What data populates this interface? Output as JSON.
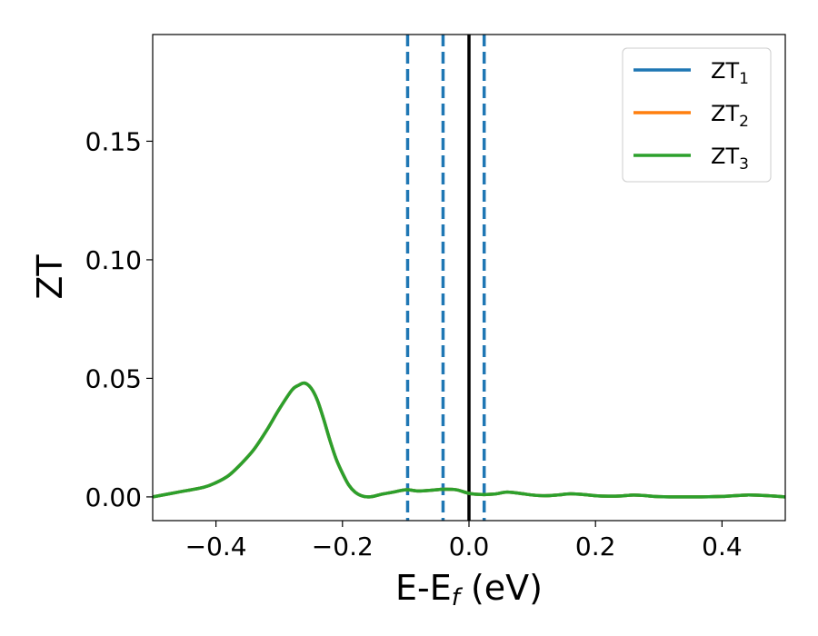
{
  "chart_data": {
    "type": "line",
    "title": "",
    "xlabel": "E-E",
    "xlabel_sub": "f",
    "xlabel_unit": " (eV)",
    "ylabel": "ZT",
    "xlim": [
      -0.5,
      0.5
    ],
    "ylim": [
      -0.01,
      0.195
    ],
    "xticks": [
      -0.4,
      -0.2,
      0.0,
      0.2,
      0.4
    ],
    "xtick_labels": [
      "−0.4",
      "−0.2",
      "0.0",
      "0.2",
      "0.4"
    ],
    "yticks": [
      0.0,
      0.05,
      0.1,
      0.15
    ],
    "ytick_labels": [
      "0.00",
      "0.05",
      "0.10",
      "0.15"
    ],
    "grid": false,
    "legend_position": "top-right",
    "vertical_lines": [
      {
        "x": -0.097,
        "style": "dashed",
        "color": "#1f77b4"
      },
      {
        "x": -0.041,
        "style": "dashed",
        "color": "#1f77b4"
      },
      {
        "x": 0.0,
        "style": "solid",
        "color": "#000000"
      },
      {
        "x": 0.024,
        "style": "dashed",
        "color": "#1f77b4"
      }
    ],
    "series": [
      {
        "name": "ZT",
        "subscript": "1",
        "color": "#1f77b4",
        "draw_order": 0
      },
      {
        "name": "ZT",
        "subscript": "2",
        "color": "#ff7f0e",
        "draw_order": 1
      },
      {
        "name": "ZT",
        "subscript": "3",
        "color": "#2ca02c",
        "draw_order": 2
      }
    ],
    "x": [
      -0.5,
      -0.46,
      -0.42,
      -0.4,
      -0.38,
      -0.36,
      -0.34,
      -0.32,
      -0.3,
      -0.28,
      -0.27,
      -0.26,
      -0.25,
      -0.24,
      -0.23,
      -0.22,
      -0.21,
      -0.2,
      -0.19,
      -0.18,
      -0.17,
      -0.16,
      -0.15,
      -0.14,
      -0.12,
      -0.1,
      -0.08,
      -0.06,
      -0.04,
      -0.02,
      0.0,
      0.02,
      0.04,
      0.06,
      0.08,
      0.1,
      0.12,
      0.14,
      0.16,
      0.18,
      0.2,
      0.22,
      0.24,
      0.26,
      0.28,
      0.3,
      0.35,
      0.4,
      0.44,
      0.48,
      0.5
    ],
    "y": [
      0.0,
      0.002,
      0.004,
      0.006,
      0.009,
      0.014,
      0.02,
      0.028,
      0.037,
      0.045,
      0.047,
      0.048,
      0.046,
      0.041,
      0.033,
      0.024,
      0.016,
      0.01,
      0.005,
      0.002,
      0.0005,
      0.0,
      0.0003,
      0.001,
      0.002,
      0.003,
      0.0025,
      0.0028,
      0.0032,
      0.003,
      0.0015,
      0.001,
      0.0012,
      0.002,
      0.0015,
      0.0008,
      0.0005,
      0.0008,
      0.0013,
      0.001,
      0.0005,
      0.0003,
      0.0004,
      0.0008,
      0.0005,
      0.0001,
      0.0,
      0.0002,
      0.0008,
      0.0004,
      0.0
    ]
  }
}
